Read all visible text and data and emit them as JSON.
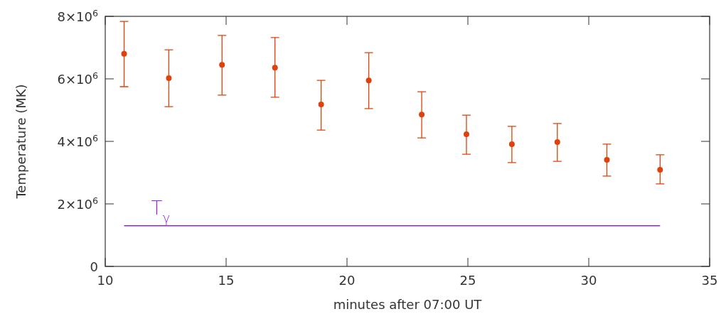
{
  "chart_data": {
    "type": "scatter",
    "xlabel": "minutes after 07:00 UT",
    "ylabel": "Temperature (MK)",
    "xlim": [
      10,
      35
    ],
    "xticks": [
      10,
      15,
      20,
      25,
      30,
      35
    ],
    "ylim": [
      0,
      8000000
    ],
    "yticks": [
      0,
      {
        "value": 2000000,
        "label": "2×10$^{6}$"
      },
      {
        "value": 4000000,
        "label": "4×10$^{6}$"
      },
      {
        "value": 6000000,
        "label": "6×10$^{6}$"
      },
      {
        "value": 8000000,
        "label": "8×10$^{6}$"
      }
    ],
    "grid": false,
    "series": [
      {
        "marker": "circle",
        "color": "#e0400a",
        "x": [
          10.78,
          12.63,
          14.83,
          17.02,
          18.93,
          20.9,
          23.09,
          24.94,
          26.82,
          28.7,
          30.75,
          32.95
        ],
        "values": [
          6800000,
          6020000,
          6450000,
          6360000,
          5180000,
          5950000,
          4860000,
          4230000,
          3910000,
          3980000,
          3410000,
          3090000
        ],
        "errors": [
          [
            5750000,
            7840000
          ],
          [
            5110000,
            6930000
          ],
          [
            5480000,
            7390000
          ],
          [
            5410000,
            7320000
          ],
          [
            4360000,
            5950000
          ],
          [
            5050000,
            6840000
          ],
          [
            4110000,
            5590000
          ],
          [
            3590000,
            4840000
          ],
          [
            3320000,
            4480000
          ],
          [
            3360000,
            4570000
          ],
          [
            2890000,
            3910000
          ],
          [
            2640000,
            3570000
          ]
        ]
      },
      {
        "type": "line",
        "name": "T$_{γ}$",
        "color": "#9a1ef0",
        "x": [
          10.78,
          32.95
        ],
        "values": [
          1300000,
          1300000
        ]
      }
    ]
  }
}
